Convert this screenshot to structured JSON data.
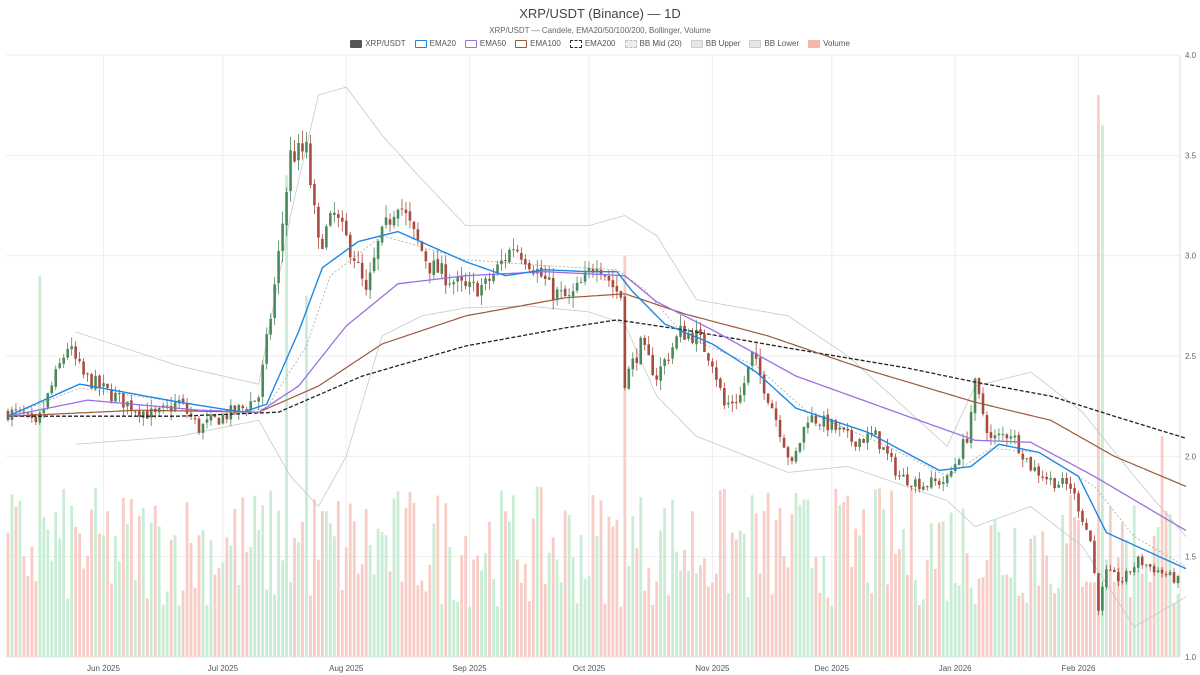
{
  "header": {
    "title": "XRP/USDT (Binance) — 1D",
    "subtitle": "XRP/USDT — Candele, EMA20/50/100/200, Bollinger, Volume"
  },
  "legend": [
    {
      "label": "XRP/USDT",
      "color": "#555555",
      "style": "solid"
    },
    {
      "label": "EMA20",
      "color": "#1e88e5",
      "style": "outline"
    },
    {
      "label": "EMA50",
      "color": "#9b6fe0",
      "style": "outline"
    },
    {
      "label": "EMA100",
      "color": "#9c5a3c",
      "style": "outline"
    },
    {
      "label": "EMA200",
      "color": "#222222",
      "style": "dashed"
    },
    {
      "label": "BB Mid (20)",
      "color": "#bbbbbb",
      "style": "dashed-light"
    },
    {
      "label": "BB Upper",
      "color": "#cccccc",
      "style": "light"
    },
    {
      "label": "BB Lower",
      "color": "#cccccc",
      "style": "light"
    },
    {
      "label": "Volume",
      "color": "#f5b7ad",
      "style": "light-fill"
    }
  ],
  "colors": {
    "up": "#4a8a5a",
    "down": "#a84a3e",
    "vol_up": "#bfe9cc",
    "vol_down": "#f7c4bc",
    "grid": "#eeeeee"
  },
  "chart_data": {
    "type": "candlestick",
    "symbol": "XRP/USDT",
    "exchange": "Binance",
    "timeframe": "1D",
    "start_date": "2025-05-08",
    "ylim": [
      1.0,
      4.0
    ],
    "y_ticks": [
      "1.0",
      "1.5",
      "2.0",
      "2.5",
      "3.0",
      "3.5",
      "4.0"
    ],
    "x_ticks": [
      {
        "label": "Jun 2025",
        "date": "2025-06-01"
      },
      {
        "label": "Jul 2025",
        "date": "2025-07-01"
      },
      {
        "label": "Aug 2025",
        "date": "2025-08-01"
      },
      {
        "label": "Sep 2025",
        "date": "2025-09-01"
      },
      {
        "label": "Oct 2025",
        "date": "2025-10-01"
      },
      {
        "label": "Nov 2025",
        "date": "2025-11-01"
      },
      {
        "label": "Dec 2025",
        "date": "2025-12-01"
      },
      {
        "label": "Jan 2026",
        "date": "2026-01-01"
      },
      {
        "label": "Feb 2026",
        "date": "2026-02-01"
      }
    ],
    "close_anchors": [
      [
        "2025-05-08",
        2.22
      ],
      [
        "2025-05-12",
        2.2
      ],
      [
        "2025-05-15",
        2.14
      ],
      [
        "2025-05-20",
        2.4
      ],
      [
        "2025-05-23",
        2.55
      ],
      [
        "2025-05-27",
        2.4
      ],
      [
        "2025-06-02",
        2.32
      ],
      [
        "2025-06-08",
        2.25
      ],
      [
        "2025-06-14",
        2.2
      ],
      [
        "2025-06-20",
        2.27
      ],
      [
        "2025-06-25",
        2.14
      ],
      [
        "2025-07-01",
        2.2
      ],
      [
        "2025-07-06",
        2.24
      ],
      [
        "2025-07-10",
        2.3
      ],
      [
        "2025-07-13",
        2.7
      ],
      [
        "2025-07-15",
        3.0
      ],
      [
        "2025-07-18",
        3.5
      ],
      [
        "2025-07-22",
        3.52
      ],
      [
        "2025-07-25",
        3.05
      ],
      [
        "2025-07-29",
        3.2
      ],
      [
        "2025-08-03",
        3.0
      ],
      [
        "2025-08-06",
        2.8
      ],
      [
        "2025-08-09",
        3.05
      ],
      [
        "2025-08-14",
        3.28
      ],
      [
        "2025-08-18",
        3.1
      ],
      [
        "2025-08-22",
        2.95
      ],
      [
        "2025-08-26",
        2.9
      ],
      [
        "2025-08-31",
        2.83
      ],
      [
        "2025-09-05",
        2.85
      ],
      [
        "2025-09-12",
        3.05
      ],
      [
        "2025-09-15",
        3.0
      ],
      [
        "2025-09-22",
        2.82
      ],
      [
        "2025-09-26",
        2.78
      ],
      [
        "2025-09-30",
        2.88
      ],
      [
        "2025-10-03",
        2.98
      ],
      [
        "2025-10-07",
        2.85
      ],
      [
        "2025-10-09",
        2.8
      ],
      [
        "2025-10-10",
        2.38
      ],
      [
        "2025-10-14",
        2.55
      ],
      [
        "2025-10-18",
        2.4
      ],
      [
        "2025-10-24",
        2.62
      ],
      [
        "2025-10-28",
        2.6
      ],
      [
        "2025-11-01",
        2.48
      ],
      [
        "2025-11-04",
        2.25
      ],
      [
        "2025-11-08",
        2.3
      ],
      [
        "2025-11-11",
        2.5
      ],
      [
        "2025-11-16",
        2.25
      ],
      [
        "2025-11-21",
        1.95
      ],
      [
        "2025-11-25",
        2.2
      ],
      [
        "2025-12-01",
        2.15
      ],
      [
        "2025-12-06",
        2.08
      ],
      [
        "2025-12-12",
        2.1
      ],
      [
        "2025-12-18",
        1.9
      ],
      [
        "2025-12-24",
        1.86
      ],
      [
        "2025-12-30",
        1.88
      ],
      [
        "2026-01-04",
        2.1
      ],
      [
        "2026-01-06",
        2.35
      ],
      [
        "2026-01-10",
        2.08
      ],
      [
        "2026-01-15",
        2.12
      ],
      [
        "2026-01-20",
        1.95
      ],
      [
        "2026-01-25",
        1.88
      ],
      [
        "2026-01-30",
        1.85
      ],
      [
        "2026-02-01",
        1.75
      ],
      [
        "2026-02-04",
        1.58
      ],
      [
        "2026-02-06",
        1.25
      ],
      [
        "2026-02-08",
        1.42
      ],
      [
        "2026-02-12",
        1.38
      ],
      [
        "2026-02-16",
        1.48
      ],
      [
        "2026-02-22",
        1.42
      ],
      [
        "2026-02-26",
        1.38
      ]
    ],
    "indicators": {
      "EMA20": [
        [
          "2025-05-08",
          2.2
        ],
        [
          "2025-05-26",
          2.36
        ],
        [
          "2025-06-20",
          2.27
        ],
        [
          "2025-07-06",
          2.22
        ],
        [
          "2025-07-12",
          2.26
        ],
        [
          "2025-07-20",
          2.62
        ],
        [
          "2025-07-26",
          2.94
        ],
        [
          "2025-08-04",
          3.07
        ],
        [
          "2025-08-14",
          3.12
        ],
        [
          "2025-08-31",
          2.97
        ],
        [
          "2025-09-10",
          2.9
        ],
        [
          "2025-09-20",
          2.93
        ],
        [
          "2025-10-01",
          2.92
        ],
        [
          "2025-10-08",
          2.92
        ],
        [
          "2025-10-12",
          2.82
        ],
        [
          "2025-10-20",
          2.66
        ],
        [
          "2025-11-01",
          2.56
        ],
        [
          "2025-11-12",
          2.42
        ],
        [
          "2025-11-22",
          2.24
        ],
        [
          "2025-12-10",
          2.12
        ],
        [
          "2025-12-28",
          1.93
        ],
        [
          "2026-01-05",
          1.95
        ],
        [
          "2026-01-12",
          2.06
        ],
        [
          "2026-01-22",
          2.02
        ],
        [
          "2026-02-01",
          1.9
        ],
        [
          "2026-02-08",
          1.62
        ],
        [
          "2026-02-28",
          1.44
        ]
      ],
      "EMA50": [
        [
          "2025-05-08",
          2.2
        ],
        [
          "2025-05-28",
          2.28
        ],
        [
          "2025-06-25",
          2.23
        ],
        [
          "2025-07-10",
          2.22
        ],
        [
          "2025-07-20",
          2.35
        ],
        [
          "2025-08-01",
          2.65
        ],
        [
          "2025-08-14",
          2.86
        ],
        [
          "2025-08-31",
          2.9
        ],
        [
          "2025-09-20",
          2.92
        ],
        [
          "2025-10-10",
          2.9
        ],
        [
          "2025-10-18",
          2.77
        ],
        [
          "2025-11-01",
          2.63
        ],
        [
          "2025-11-22",
          2.4
        ],
        [
          "2025-12-20",
          2.2
        ],
        [
          "2026-01-06",
          2.08
        ],
        [
          "2026-01-20",
          2.07
        ],
        [
          "2026-02-05",
          1.9
        ],
        [
          "2026-02-28",
          1.63
        ]
      ],
      "EMA100": [
        [
          "2025-05-08",
          2.2
        ],
        [
          "2025-06-10",
          2.23
        ],
        [
          "2025-07-10",
          2.22
        ],
        [
          "2025-07-25",
          2.35
        ],
        [
          "2025-08-10",
          2.56
        ],
        [
          "2025-08-31",
          2.7
        ],
        [
          "2025-09-25",
          2.79
        ],
        [
          "2025-10-10",
          2.81
        ],
        [
          "2025-10-25",
          2.71
        ],
        [
          "2025-11-15",
          2.6
        ],
        [
          "2025-12-10",
          2.43
        ],
        [
          "2026-01-06",
          2.27
        ],
        [
          "2026-01-25",
          2.18
        ],
        [
          "2026-02-10",
          2.0
        ],
        [
          "2026-02-28",
          1.85
        ]
      ],
      "EMA200": [
        [
          "2025-05-08",
          2.2
        ],
        [
          "2025-06-20",
          2.2
        ],
        [
          "2025-07-15",
          2.22
        ],
        [
          "2025-08-05",
          2.4
        ],
        [
          "2025-08-31",
          2.55
        ],
        [
          "2025-09-25",
          2.64
        ],
        [
          "2025-10-08",
          2.68
        ],
        [
          "2025-10-25",
          2.63
        ],
        [
          "2025-11-20",
          2.54
        ],
        [
          "2025-12-20",
          2.44
        ],
        [
          "2026-01-06",
          2.37
        ],
        [
          "2026-01-25",
          2.3
        ],
        [
          "2026-02-10",
          2.2
        ],
        [
          "2026-02-28",
          2.09
        ]
      ],
      "BB Mid (20)": [
        [
          "2025-05-08",
          2.2
        ],
        [
          "2025-05-26",
          2.34
        ],
        [
          "2025-06-20",
          2.27
        ],
        [
          "2025-07-06",
          2.22
        ],
        [
          "2025-07-12",
          2.24
        ],
        [
          "2025-07-22",
          2.55
        ],
        [
          "2025-07-28",
          2.9
        ],
        [
          "2025-08-10",
          3.1
        ],
        [
          "2025-08-31",
          2.98
        ],
        [
          "2025-09-20",
          2.95
        ],
        [
          "2025-10-08",
          2.93
        ],
        [
          "2025-10-15",
          2.83
        ],
        [
          "2025-10-25",
          2.6
        ],
        [
          "2025-11-12",
          2.45
        ],
        [
          "2025-11-25",
          2.22
        ],
        [
          "2025-12-15",
          2.05
        ],
        [
          "2025-12-30",
          1.9
        ],
        [
          "2026-01-10",
          2.04
        ],
        [
          "2026-01-22",
          2.02
        ],
        [
          "2026-02-05",
          1.85
        ],
        [
          "2026-02-15",
          1.6
        ],
        [
          "2026-02-28",
          1.45
        ]
      ],
      "BB Upper": [
        [
          "2025-05-25",
          2.62
        ],
        [
          "2025-06-20",
          2.45
        ],
        [
          "2025-07-10",
          2.36
        ],
        [
          "2025-07-18",
          3.2
        ],
        [
          "2025-07-25",
          3.8
        ],
        [
          "2025-08-01",
          3.84
        ],
        [
          "2025-08-10",
          3.6
        ],
        [
          "2025-08-20",
          3.38
        ],
        [
          "2025-08-31",
          3.15
        ],
        [
          "2025-09-15",
          3.15
        ],
        [
          "2025-10-01",
          3.15
        ],
        [
          "2025-10-10",
          3.2
        ],
        [
          "2025-10-18",
          3.1
        ],
        [
          "2025-10-28",
          2.78
        ],
        [
          "2025-11-20",
          2.7
        ],
        [
          "2025-12-05",
          2.5
        ],
        [
          "2025-12-30",
          2.05
        ],
        [
          "2026-01-06",
          2.35
        ],
        [
          "2026-01-20",
          2.42
        ],
        [
          "2026-02-02",
          2.22
        ],
        [
          "2026-02-15",
          1.9
        ],
        [
          "2026-02-28",
          1.6
        ]
      ],
      "BB Lower": [
        [
          "2025-05-25",
          2.06
        ],
        [
          "2025-06-20",
          2.1
        ],
        [
          "2025-07-10",
          2.18
        ],
        [
          "2025-07-18",
          1.9
        ],
        [
          "2025-07-25",
          1.75
        ],
        [
          "2025-08-01",
          2.0
        ],
        [
          "2025-08-10",
          2.6
        ],
        [
          "2025-08-20",
          2.7
        ],
        [
          "2025-08-31",
          2.74
        ],
        [
          "2025-09-15",
          2.75
        ],
        [
          "2025-10-01",
          2.72
        ],
        [
          "2025-10-10",
          2.66
        ],
        [
          "2025-10-18",
          2.3
        ],
        [
          "2025-10-28",
          2.1
        ],
        [
          "2025-11-20",
          1.92
        ],
        [
          "2025-12-05",
          1.95
        ],
        [
          "2025-12-30",
          1.78
        ],
        [
          "2026-01-06",
          1.65
        ],
        [
          "2026-01-20",
          1.75
        ],
        [
          "2026-02-02",
          1.55
        ],
        [
          "2026-02-15",
          1.15
        ],
        [
          "2026-02-28",
          1.3
        ]
      ]
    },
    "volume_spikes": [
      [
        "2025-05-16",
        2.9
      ],
      [
        "2025-07-17",
        3.4
      ],
      [
        "2025-07-22",
        2.8
      ],
      [
        "2025-10-10",
        3.0
      ],
      [
        "2026-02-06",
        3.8
      ],
      [
        "2026-02-07",
        3.65
      ],
      [
        "2026-02-22",
        2.1
      ]
    ]
  }
}
